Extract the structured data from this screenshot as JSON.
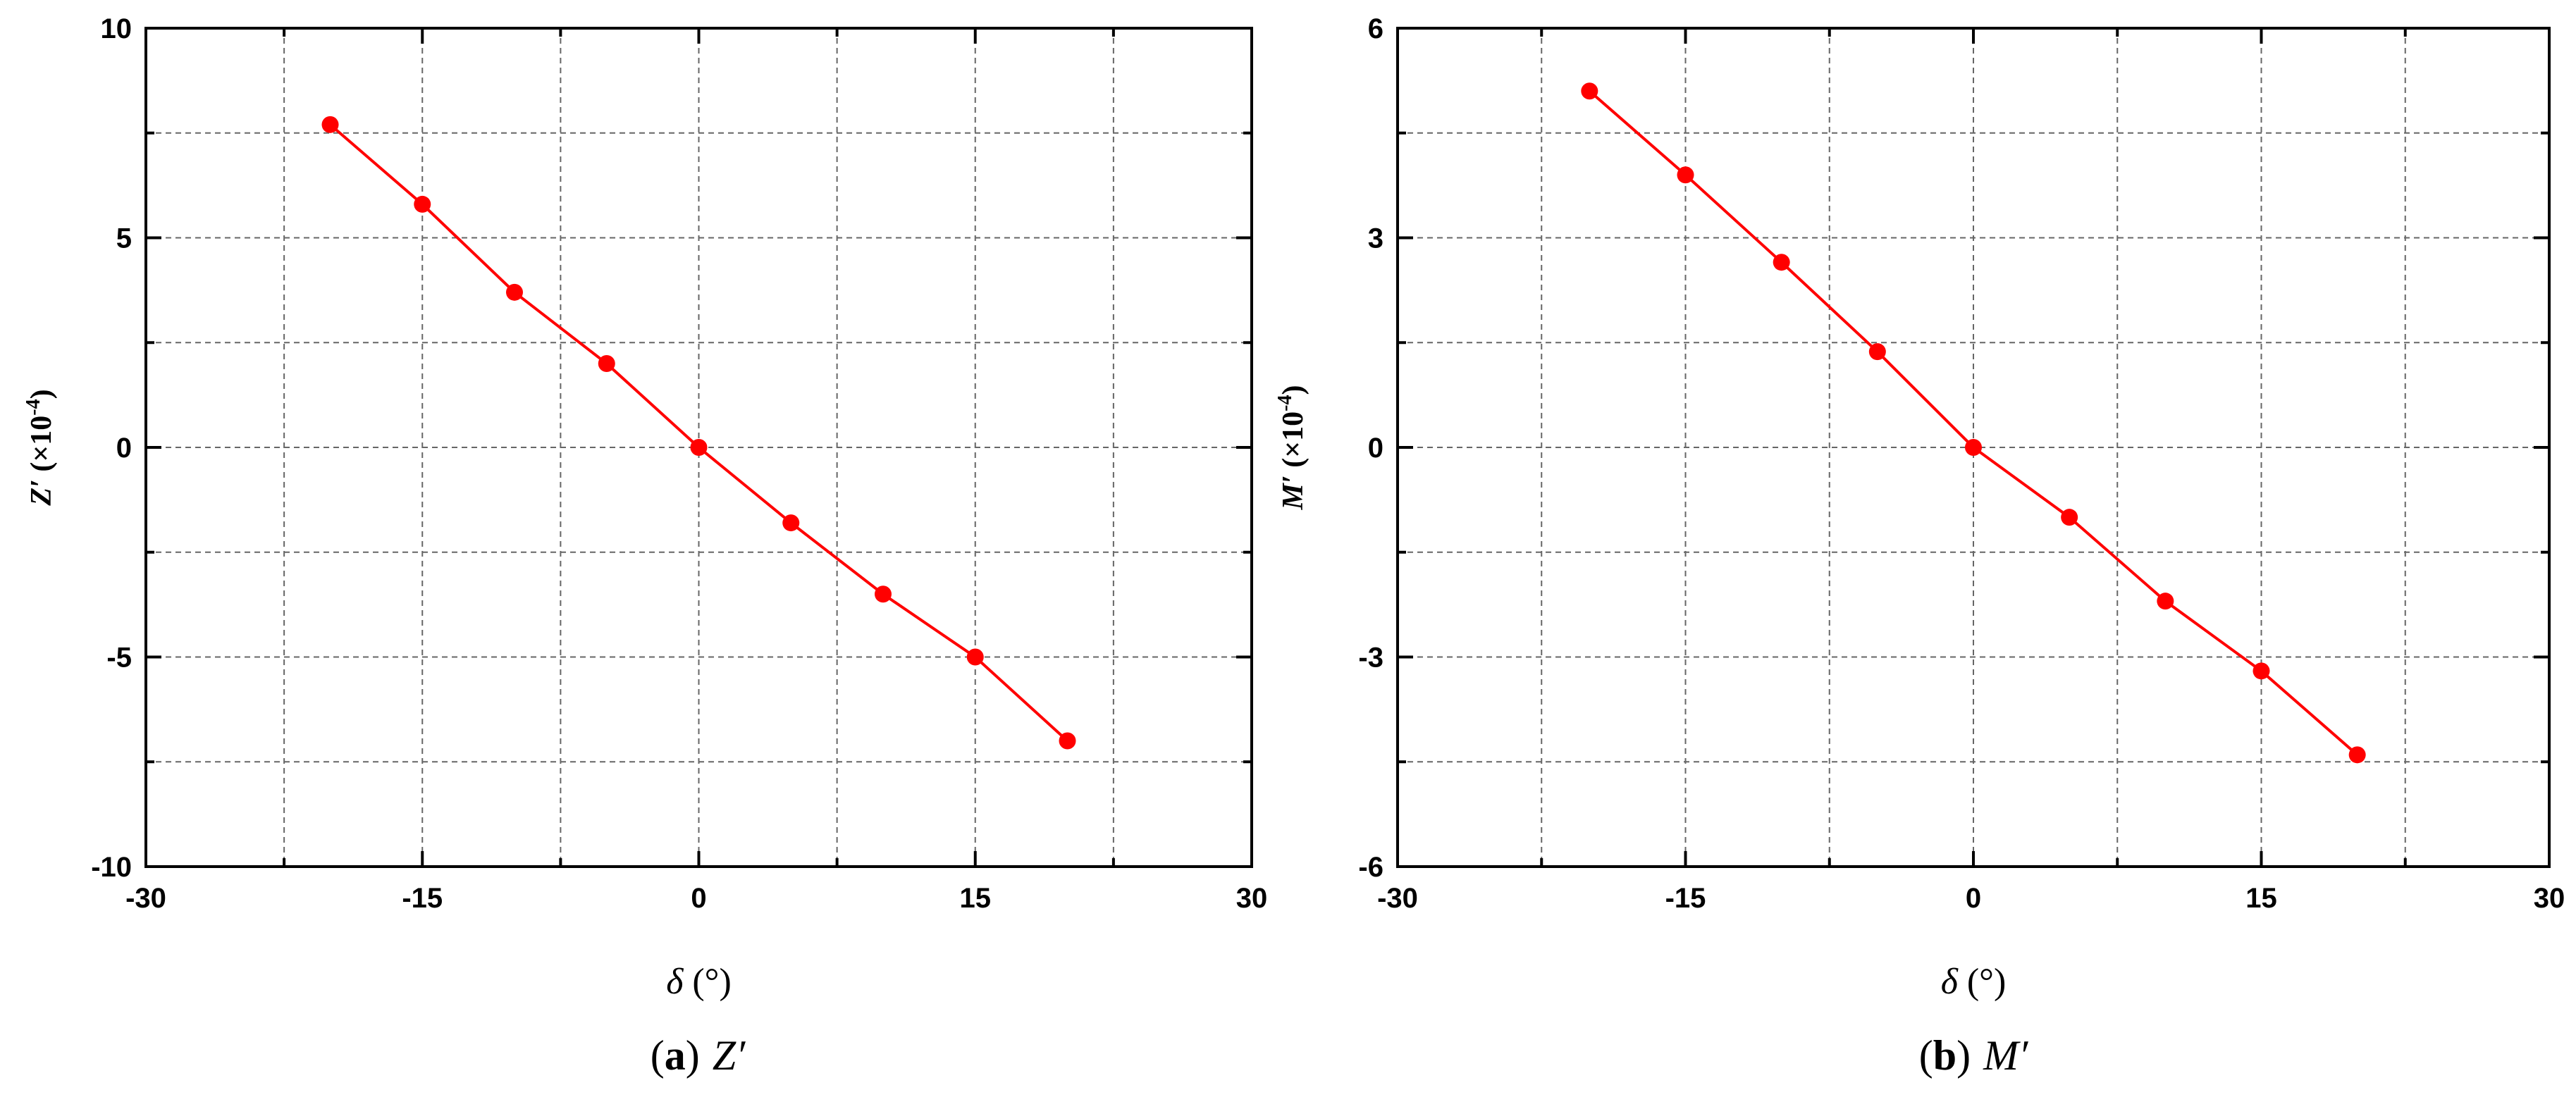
{
  "chart_data": [
    {
      "type": "line",
      "x": [
        -20,
        -15,
        -10,
        -5,
        0,
        5,
        10,
        15,
        20
      ],
      "series": [
        {
          "values": [
            7.7,
            5.8,
            3.7,
            2.0,
            0,
            -1.8,
            -3.5,
            -5.0,
            -7.0
          ],
          "color": "#ff0000"
        }
      ],
      "xlim": [
        -30,
        30
      ],
      "ylim": [
        -10,
        10
      ],
      "xticks": [
        -30,
        -15,
        0,
        15,
        30
      ],
      "yticks": [
        -10,
        -5,
        0,
        5,
        10
      ],
      "xtick_labels": [
        "-30",
        "-15",
        "0",
        "15",
        "30"
      ],
      "ytick_labels": [
        "-10",
        "-5",
        "0",
        "5",
        "10"
      ],
      "grid_x": [
        -22.5,
        -15,
        -7.5,
        0,
        7.5,
        15,
        22.5
      ],
      "grid_y": [
        -7.5,
        -5,
        -2.5,
        0,
        2.5,
        5,
        7.5
      ],
      "grid": true,
      "xlabel": {
        "symbol": "δ",
        "unit": " (°)"
      },
      "ylabel": {
        "symbol": "Z′",
        "unit": " (×10",
        "exp": "-4",
        "close": ")"
      },
      "caption": {
        "letter": "a",
        "open": "(",
        "close": ")",
        "symbol": "Z′"
      }
    },
    {
      "type": "line",
      "x": [
        -20,
        -15,
        -10,
        -5,
        0,
        5,
        10,
        15,
        20
      ],
      "series": [
        {
          "values": [
            5.1,
            3.9,
            2.65,
            1.37,
            0,
            -1.0,
            -2.2,
            -3.2,
            -4.4
          ],
          "color": "#ff0000"
        }
      ],
      "xlim": [
        -30,
        30
      ],
      "ylim": [
        -6,
        6
      ],
      "xticks": [
        -30,
        -15,
        0,
        15,
        30
      ],
      "yticks": [
        -6,
        -3,
        0,
        3,
        6
      ],
      "xtick_labels": [
        "-30",
        "-15",
        "0",
        "15",
        "30"
      ],
      "ytick_labels": [
        "-6",
        "-3",
        "0",
        "3",
        "6"
      ],
      "grid_x": [
        -22.5,
        -15,
        -7.5,
        0,
        7.5,
        15,
        22.5
      ],
      "grid_y": [
        -4.5,
        -3,
        -1.5,
        0,
        1.5,
        3,
        4.5
      ],
      "grid": true,
      "xlabel": {
        "symbol": "δ",
        "unit": " (°)"
      },
      "ylabel": {
        "symbol": "M′",
        "unit": " (×10",
        "exp": "-4",
        "close": ")"
      },
      "caption": {
        "letter": "b",
        "open": "(",
        "close": ")",
        "symbol": "M′"
      }
    }
  ]
}
